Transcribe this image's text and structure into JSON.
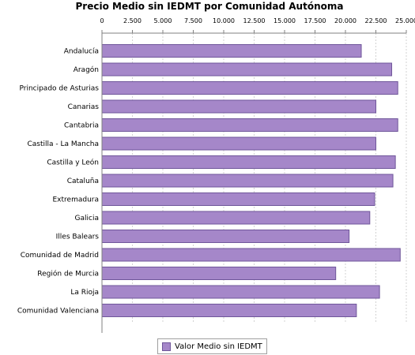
{
  "colors": {
    "bar": "#a587c9",
    "bar_border": "#6f569a",
    "grid": "#c8c8c8",
    "axis": "#808080"
  },
  "chart_data": {
    "type": "bar",
    "orientation": "horizontal",
    "title": "Precio Medio sin IEDMT por Comunidad Autónoma",
    "categories": [
      "Andalucía",
      "Aragón",
      "Principado de Asturias",
      "Canarias",
      "Cantabria",
      "Castilla - La Mancha",
      "Castilla y León",
      "Cataluña",
      "Extremadura",
      "Galicia",
      "Illes Balears",
      "Comunidad de Madrid",
      "Región de Murcia",
      "La Rioja",
      "Comunidad Valenciana"
    ],
    "series": [
      {
        "name": "Valor Medio sin IEDMT",
        "values": [
          21300,
          23800,
          24300,
          22500,
          24300,
          22500,
          24100,
          23900,
          22400,
          22000,
          20300,
          24500,
          19200,
          22800,
          20900
        ]
      }
    ],
    "xlim": [
      0,
      25000
    ],
    "ticks": [
      "0",
      "2.500",
      "5.000",
      "7.500",
      "10.000",
      "12.500",
      "15.000",
      "17.500",
      "20.000",
      "22.500",
      "25.000"
    ],
    "tick_values": [
      0,
      2500,
      5000,
      7500,
      10000,
      12500,
      15000,
      17500,
      20000,
      22500,
      25000
    ],
    "x_axis_position": "top",
    "grid": true,
    "legend_position": "bottom"
  }
}
